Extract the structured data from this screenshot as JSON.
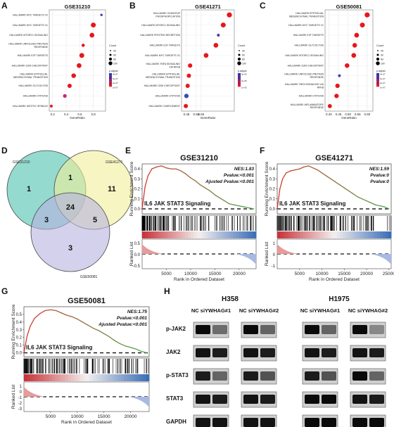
{
  "panel_labels": {
    "A": "A",
    "B": "B",
    "C": "C",
    "D": "D",
    "E": "E",
    "F": "F",
    "G": "G",
    "H": "H"
  },
  "colors": {
    "low": "#1f2fbf",
    "high": "#e8161c",
    "mid": "#c32a7a",
    "venn_a": "#3cbca8",
    "venn_b": "#f2ef9a",
    "venn_c": "#b8b3e0",
    "gsea_line_start": "#d7372f",
    "gsea_line_end": "#4fa64f"
  },
  "shared": {
    "x_label": "GeneRatio",
    "size_legend_title": "Count",
    "color_legend_title": "p.adjust",
    "gsea_y_label": "Running Enrichment Score",
    "ranked_label": "Ranked List",
    "gsea_x_label": "Rank in Ordered Dataset",
    "gsea_gene_set": "IL6 JAK STAT3 Signaling"
  },
  "chart_data": [
    {
      "type": "scatter",
      "panel": "A",
      "title": "GSE31210",
      "xlabel": "GeneRatio",
      "xlim": [
        0.15,
        0.98
      ],
      "x_ticks": [
        "0.2",
        "0.4",
        "0.6",
        "0.8"
      ],
      "x_tick_values": [
        0.2,
        0.4,
        0.6,
        0.8
      ],
      "size_legend": [
        "40",
        "60",
        "80",
        "100"
      ],
      "color_legend": [
        "4e-07",
        "3e-07",
        "2e-07",
        "1e-07"
      ],
      "categories": [
        "HALLMARK MYC TARGETS V2",
        "HALLMARK MYC TARGETS V1",
        "HALLMARK MTORC1 SIGNALING",
        "HALLMARK UNFOLDED PROTEIN RESPONSE",
        "HALLMARK E2F TARGETS",
        "HALLMARK G2M CHECKPOINT",
        "HALLMARK EPITHELIAL MESENCHYMAL TRANSITION",
        "HALLMARK GLYCOLYSIS",
        "HALLMARK HYPOXIA",
        "HALLMARK MITOTIC SPINDLE"
      ],
      "points": [
        {
          "x": 0.92,
          "count": 30,
          "color": "#3a3fb8"
        },
        {
          "x": 0.8,
          "count": 105,
          "color": "#e8161c"
        },
        {
          "x": 0.78,
          "count": 100,
          "color": "#e8161c"
        },
        {
          "x": 0.65,
          "count": 55,
          "color": "#e8161c"
        },
        {
          "x": 0.63,
          "count": 105,
          "color": "#e8161c"
        },
        {
          "x": 0.59,
          "count": 100,
          "color": "#e8161c"
        },
        {
          "x": 0.51,
          "count": 95,
          "color": "#e8161c"
        },
        {
          "x": 0.45,
          "count": 85,
          "color": "#e8161c"
        },
        {
          "x": 0.38,
          "count": 70,
          "color": "#c32a7a"
        },
        {
          "x": 0.18,
          "count": 45,
          "color": "#e8161c"
        }
      ]
    },
    {
      "type": "scatter",
      "panel": "B",
      "title": "GSE41271",
      "xlabel": "GeneRatio",
      "xlim": [
        0.44,
        0.87
      ],
      "x_ticks": [
        "0.48",
        "0.56",
        "0.60"
      ],
      "x_tick_values": [
        0.48,
        0.56,
        0.6
      ],
      "size_legend": [
        "40",
        "60",
        "80",
        "100"
      ],
      "color_legend": [
        "3e-05",
        "2e-05",
        "1e-05"
      ],
      "categories": [
        "HALLMARK OXIDATIVE PHOSPHORYLATION",
        "HALLMARK MTORC1 SIGNALING",
        "HALLMARK PROTEIN SECRETION",
        "HALLMARK E2F TARGETS",
        "HALLMARK MYC TARGETS V1",
        "HALLMARK TNFA SIGNALING VIA NFKB",
        "HALLMARK EPITHELIAL MESENCHYMAL TRANSITION",
        "HALLMARK G2M CHECKPOINT",
        "HALLMARK HYPOXIA",
        "HALLMARK COMPLEMENT"
      ],
      "points": [
        {
          "x": 0.83,
          "count": 110,
          "color": "#e8161c"
        },
        {
          "x": 0.78,
          "count": 105,
          "color": "#e8161c"
        },
        {
          "x": 0.74,
          "count": 45,
          "color": "#4a3fb3"
        },
        {
          "x": 0.72,
          "count": 100,
          "color": "#e8161c"
        },
        {
          "x": 0.64,
          "count": 100,
          "color": "#e8161c"
        },
        {
          "x": 0.51,
          "count": 90,
          "color": "#e8161c"
        },
        {
          "x": 0.5,
          "count": 85,
          "color": "#e8161c"
        },
        {
          "x": 0.49,
          "count": 85,
          "color": "#e8161c"
        },
        {
          "x": 0.48,
          "count": 90,
          "color": "#2f4fb5"
        },
        {
          "x": 0.475,
          "count": 85,
          "color": "#e8161c"
        }
      ]
    },
    {
      "type": "scatter",
      "panel": "C",
      "title": "GSE50081",
      "xlabel": "GeneRatio",
      "xlim": [
        0.38,
        0.63
      ],
      "x_ticks": [
        "0.40",
        "0.45",
        "0.50",
        "0.55",
        "0.60"
      ],
      "x_tick_values": [
        0.4,
        0.45,
        0.5,
        0.55,
        0.6
      ],
      "size_legend": [
        "40",
        "60",
        "80",
        "100"
      ],
      "color_legend": [
        "4e-07",
        "3e-07",
        "2e-07",
        "1e-07"
      ],
      "categories": [
        "HALLMARK EPITHELIAL MESENCHYMAL TRANSITION",
        "HALLMARK MYC TARGETS V1",
        "HALLMARK E2F TARGETS",
        "HALLMARK GLYCOLYSIS",
        "HALLMARK MTORC1 SIGNALING",
        "HALLMARK G2M CHECKPOINT",
        "HALLMARK UNFOLDED PROTEIN RESPONSE",
        "HALLMARK TNFA SIGNALING VIA NFKB",
        "HALLMARK HYPOXIA",
        "HALLMARK INFLAMMATORY RESPONSE"
      ],
      "points": [
        {
          "x": 0.6,
          "count": 110,
          "color": "#e8161c"
        },
        {
          "x": 0.575,
          "count": 105,
          "color": "#e8161c"
        },
        {
          "x": 0.545,
          "count": 100,
          "color": "#e8161c"
        },
        {
          "x": 0.535,
          "count": 95,
          "color": "#e8161c"
        },
        {
          "x": 0.53,
          "count": 100,
          "color": "#e8161c"
        },
        {
          "x": 0.495,
          "count": 95,
          "color": "#e8161c"
        },
        {
          "x": 0.455,
          "count": 40,
          "color": "#3a3fb8"
        },
        {
          "x": 0.445,
          "count": 90,
          "color": "#e8161c"
        },
        {
          "x": 0.44,
          "count": 90,
          "color": "#e8161c"
        },
        {
          "x": 0.405,
          "count": 80,
          "color": "#e8161c"
        }
      ]
    },
    {
      "type": "venn",
      "panel": "D",
      "sets": [
        "GSE31210",
        "GSE41271",
        "GSE50081"
      ],
      "regions": {
        "a_only": "1",
        "ab": "1",
        "b_only": "11",
        "abc": "24",
        "ac": "3",
        "bc": "5",
        "c_only": "3"
      }
    },
    {
      "type": "line",
      "panel": "E",
      "title": "GSE31210",
      "stats": [
        "NES:1.83",
        "Pvalue:<0.001",
        "Ajusted Pvalue:<0.001"
      ],
      "y_ticks": [
        "0.4",
        "0.3",
        "0.2",
        "0.1",
        "0.0"
      ],
      "ylim": [
        -0.05,
        0.45
      ],
      "x_ticks": [
        "5000",
        "10000",
        "15000",
        "20000"
      ],
      "xlim": [
        0,
        23500
      ],
      "ranked_ticks": [
        "0.5",
        "0.0",
        "-0.5"
      ],
      "x": [
        0,
        600,
        1200,
        2000,
        3000,
        4000,
        5000,
        6000,
        7000,
        8000,
        9000,
        10000,
        11000,
        12000,
        13000,
        14000,
        15000,
        16000,
        17000,
        18000,
        19000,
        20000,
        21000,
        22000,
        23000
      ],
      "y": [
        0,
        0.22,
        0.33,
        0.4,
        0.42,
        0.43,
        0.41,
        0.4,
        0.4,
        0.38,
        0.35,
        0.31,
        0.28,
        0.24,
        0.21,
        0.18,
        0.14,
        0.11,
        0.08,
        0.05,
        0.04,
        0.03,
        0.02,
        0.01,
        0.0
      ]
    },
    {
      "type": "line",
      "panel": "F",
      "title": "GSE41271",
      "stats": [
        "NES:1.59",
        "Pvalue:0",
        "Pvalue:0"
      ],
      "y_ticks": [
        "0.4",
        "0.3",
        "0.2",
        "0.1",
        "0.0"
      ],
      "ylim": [
        -0.05,
        0.45
      ],
      "x_ticks": [
        "5000",
        "10000",
        "15000",
        "20000",
        "25000"
      ],
      "xlim": [
        0,
        25500
      ],
      "ranked_ticks": [
        "1",
        "0",
        "-1"
      ],
      "x": [
        0,
        600,
        1200,
        2000,
        3000,
        4000,
        5000,
        6000,
        7000,
        8000,
        9000,
        10000,
        11000,
        12000,
        13000,
        14000,
        15000,
        16000,
        17000,
        18000,
        19000,
        20000,
        21000,
        22000,
        23000,
        24000,
        25000
      ],
      "y": [
        0,
        0.2,
        0.3,
        0.36,
        0.38,
        0.39,
        0.4,
        0.42,
        0.43,
        0.41,
        0.39,
        0.36,
        0.33,
        0.3,
        0.27,
        0.24,
        0.21,
        0.18,
        0.15,
        0.12,
        0.1,
        0.08,
        0.06,
        0.04,
        0.03,
        0.02,
        0.0
      ]
    },
    {
      "type": "line",
      "panel": "G",
      "title": "GSE50081",
      "stats": [
        "NES:1.75",
        "Pvalue:<0.001",
        "Ajusted Pvalue:<0.001"
      ],
      "y_ticks": [
        "0.5",
        "0.4",
        "0.3",
        "0.2",
        "0.1",
        "0.0"
      ],
      "ylim": [
        -0.05,
        0.6
      ],
      "x_ticks": [
        "5000",
        "10000",
        "15000",
        "20000"
      ],
      "xlim": [
        0,
        23500
      ],
      "ranked_ticks": [
        "1",
        "0",
        "-1",
        "-2",
        "-3"
      ],
      "x": [
        0,
        600,
        1200,
        2000,
        3000,
        4000,
        5000,
        6000,
        7000,
        8000,
        9000,
        10000,
        11000,
        12000,
        13000,
        14000,
        15000,
        16000,
        17000,
        18000,
        19000,
        20000,
        21000,
        22000,
        23000
      ],
      "y": [
        0,
        0.22,
        0.35,
        0.45,
        0.51,
        0.55,
        0.56,
        0.55,
        0.52,
        0.49,
        0.47,
        0.44,
        0.4,
        0.36,
        0.32,
        0.29,
        0.25,
        0.21,
        0.16,
        0.12,
        0.09,
        0.07,
        0.05,
        0.02,
        0.0
      ]
    }
  ],
  "western": {
    "groups": [
      "H358",
      "H1975"
    ],
    "lanes": [
      "NC siYWHAG#1",
      "NC siYWHAG#2",
      "NC siYWHAG#1",
      "NC siYWHAG#2"
    ],
    "proteins": [
      "p-JAK2",
      "JAK2",
      "p-STAT3",
      "STAT3",
      "GAPDH"
    ],
    "intensities": [
      [
        [
          1.0,
          0.45
        ],
        [
          1.0,
          0.5
        ],
        [
          1.0,
          0.5
        ],
        [
          1.0,
          0.3
        ]
      ],
      [
        [
          0.95,
          0.9
        ],
        [
          0.95,
          0.9
        ],
        [
          0.95,
          0.9
        ],
        [
          0.95,
          0.9
        ]
      ],
      [
        [
          0.9,
          0.5
        ],
        [
          0.9,
          0.6
        ],
        [
          0.9,
          0.6
        ],
        [
          1.0,
          0.5
        ]
      ],
      [
        [
          0.95,
          0.9
        ],
        [
          0.95,
          0.9
        ],
        [
          1.0,
          1.0
        ],
        [
          0.95,
          0.9
        ]
      ],
      [
        [
          0.95,
          0.95
        ],
        [
          0.95,
          0.95
        ],
        [
          1.0,
          1.0
        ],
        [
          1.0,
          1.0
        ]
      ]
    ]
  }
}
